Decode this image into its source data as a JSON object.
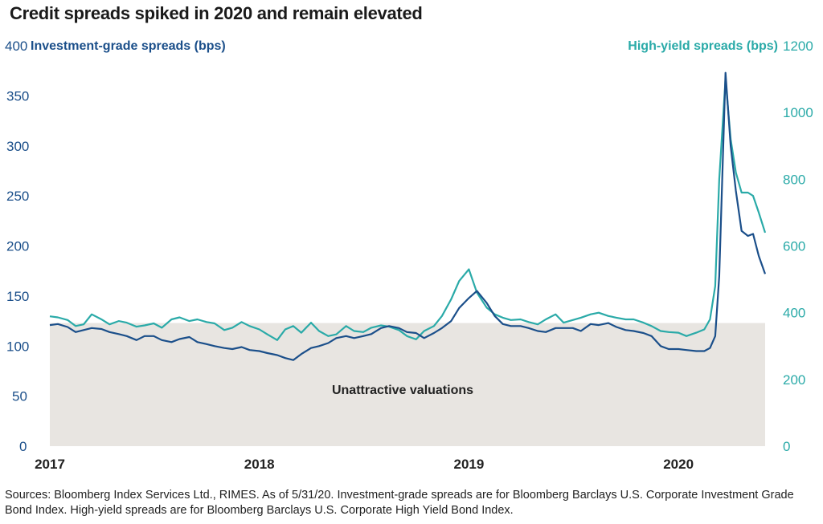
{
  "title": "Credit spreads spiked in 2020 and remain elevated",
  "source_note": "Sources: Bloomberg Index Services Ltd., RIMES. As of 5/31/20. Investment-grade spreads are for Bloomberg Barclays U.S. Corporate Investment Grade Bond Index. High-yield spreads are for Bloomberg Barclays U.S. Corporate High Yield Bond Index.",
  "colors": {
    "ig": "#1b4f8a",
    "hy": "#2aaaa8",
    "band": "#e8e5e1",
    "axis_text_left": "#1b4f8a",
    "axis_text_right": "#2aaaa8"
  },
  "chart_data": {
    "type": "line",
    "title": "Credit spreads spiked in 2020 and remain elevated",
    "x_ticks": [
      "2017",
      "2018",
      "2019",
      "2020"
    ],
    "x_range": [
      "2017-01-01",
      "2020-05-31"
    ],
    "left_axis": {
      "label": "Investment-grade spreads (bps)",
      "range": [
        0,
        400
      ],
      "ticks": [
        0,
        50,
        100,
        150,
        200,
        250,
        300,
        350,
        400
      ]
    },
    "right_axis": {
      "label": "High-yield spreads (bps)",
      "range": [
        0,
        1200
      ],
      "ticks": [
        0,
        200,
        400,
        600,
        800,
        1000,
        1200
      ]
    },
    "band": {
      "label": "Unattractive valuations",
      "ig_from": 0,
      "ig_to": 123
    },
    "grid": false,
    "series": [
      {
        "name": "Investment-grade spreads (bps)",
        "axis": "left",
        "x": [
          "2017-01-01",
          "2017-01-15",
          "2017-02-01",
          "2017-02-15",
          "2017-03-01",
          "2017-03-15",
          "2017-04-01",
          "2017-04-15",
          "2017-05-01",
          "2017-05-15",
          "2017-06-01",
          "2017-06-15",
          "2017-07-01",
          "2017-07-15",
          "2017-08-01",
          "2017-08-15",
          "2017-09-01",
          "2017-09-15",
          "2017-10-01",
          "2017-10-15",
          "2017-11-01",
          "2017-11-15",
          "2017-12-01",
          "2017-12-15",
          "2018-01-01",
          "2018-01-15",
          "2018-02-01",
          "2018-02-15",
          "2018-03-01",
          "2018-03-15",
          "2018-04-01",
          "2018-04-15",
          "2018-05-01",
          "2018-05-15",
          "2018-06-01",
          "2018-06-15",
          "2018-07-01",
          "2018-07-15",
          "2018-08-01",
          "2018-08-15",
          "2018-09-01",
          "2018-09-15",
          "2018-10-01",
          "2018-10-15",
          "2018-11-01",
          "2018-11-15",
          "2018-12-01",
          "2018-12-15",
          "2019-01-01",
          "2019-01-15",
          "2019-02-01",
          "2019-02-15",
          "2019-03-01",
          "2019-03-15",
          "2019-04-01",
          "2019-04-15",
          "2019-05-01",
          "2019-05-15",
          "2019-06-01",
          "2019-06-15",
          "2019-07-01",
          "2019-07-15",
          "2019-08-01",
          "2019-08-15",
          "2019-09-01",
          "2019-09-15",
          "2019-10-01",
          "2019-10-15",
          "2019-11-01",
          "2019-11-15",
          "2019-12-01",
          "2019-12-15",
          "2020-01-01",
          "2020-01-15",
          "2020-02-01",
          "2020-02-15",
          "2020-02-25",
          "2020-03-05",
          "2020-03-12",
          "2020-03-23",
          "2020-04-01",
          "2020-04-10",
          "2020-04-20",
          "2020-05-01",
          "2020-05-10",
          "2020-05-20",
          "2020-05-31"
        ],
        "values": [
          121,
          122,
          119,
          114,
          116,
          118,
          117,
          114,
          112,
          110,
          106,
          110,
          110,
          106,
          104,
          107,
          109,
          104,
          102,
          100,
          98,
          97,
          99,
          96,
          95,
          93,
          91,
          88,
          86,
          92,
          98,
          100,
          103,
          108,
          110,
          108,
          110,
          112,
          118,
          120,
          118,
          114,
          113,
          108,
          113,
          118,
          125,
          138,
          148,
          155,
          143,
          130,
          122,
          120,
          120,
          118,
          115,
          114,
          118,
          118,
          118,
          115,
          122,
          121,
          123,
          119,
          116,
          115,
          113,
          110,
          100,
          97,
          97,
          96,
          95,
          95,
          98,
          110,
          170,
          373,
          300,
          255,
          215,
          210,
          212,
          190,
          172
        ]
      },
      {
        "name": "High-yield spreads (bps)",
        "axis": "right",
        "x": [
          "2017-01-01",
          "2017-01-15",
          "2017-02-01",
          "2017-02-15",
          "2017-03-01",
          "2017-03-15",
          "2017-04-01",
          "2017-04-15",
          "2017-05-01",
          "2017-05-15",
          "2017-06-01",
          "2017-06-15",
          "2017-07-01",
          "2017-07-15",
          "2017-08-01",
          "2017-08-15",
          "2017-09-01",
          "2017-09-15",
          "2017-10-01",
          "2017-10-15",
          "2017-11-01",
          "2017-11-15",
          "2017-12-01",
          "2017-12-15",
          "2018-01-01",
          "2018-01-15",
          "2018-02-01",
          "2018-02-15",
          "2018-03-01",
          "2018-03-15",
          "2018-04-01",
          "2018-04-15",
          "2018-05-01",
          "2018-05-15",
          "2018-06-01",
          "2018-06-15",
          "2018-07-01",
          "2018-07-15",
          "2018-08-01",
          "2018-08-15",
          "2018-09-01",
          "2018-09-15",
          "2018-10-01",
          "2018-10-15",
          "2018-11-01",
          "2018-11-15",
          "2018-12-01",
          "2018-12-15",
          "2019-01-01",
          "2019-01-15",
          "2019-02-01",
          "2019-02-15",
          "2019-03-01",
          "2019-03-15",
          "2019-04-01",
          "2019-04-15",
          "2019-05-01",
          "2019-05-15",
          "2019-06-01",
          "2019-06-15",
          "2019-07-01",
          "2019-07-15",
          "2019-08-01",
          "2019-08-15",
          "2019-09-01",
          "2019-09-15",
          "2019-10-01",
          "2019-10-15",
          "2019-11-01",
          "2019-11-15",
          "2019-12-01",
          "2019-12-15",
          "2020-01-01",
          "2020-01-15",
          "2020-02-01",
          "2020-02-15",
          "2020-02-25",
          "2020-03-05",
          "2020-03-12",
          "2020-03-23",
          "2020-04-01",
          "2020-04-10",
          "2020-04-20",
          "2020-05-01",
          "2020-05-10",
          "2020-05-20",
          "2020-05-31"
        ],
        "values": [
          389,
          386,
          378,
          360,
          365,
          395,
          380,
          365,
          375,
          370,
          358,
          362,
          368,
          355,
          380,
          386,
          375,
          380,
          372,
          368,
          348,
          355,
          372,
          360,
          350,
          335,
          318,
          350,
          360,
          340,
          370,
          345,
          330,
          335,
          360,
          345,
          342,
          355,
          362,
          358,
          348,
          330,
          320,
          345,
          360,
          390,
          440,
          495,
          530,
          460,
          415,
          395,
          385,
          378,
          380,
          372,
          365,
          380,
          395,
          370,
          378,
          385,
          395,
          400,
          390,
          385,
          380,
          380,
          370,
          360,
          345,
          342,
          340,
          330,
          340,
          350,
          380,
          480,
          800,
          1100,
          920,
          820,
          760,
          760,
          750,
          700,
          640
        ]
      }
    ]
  }
}
